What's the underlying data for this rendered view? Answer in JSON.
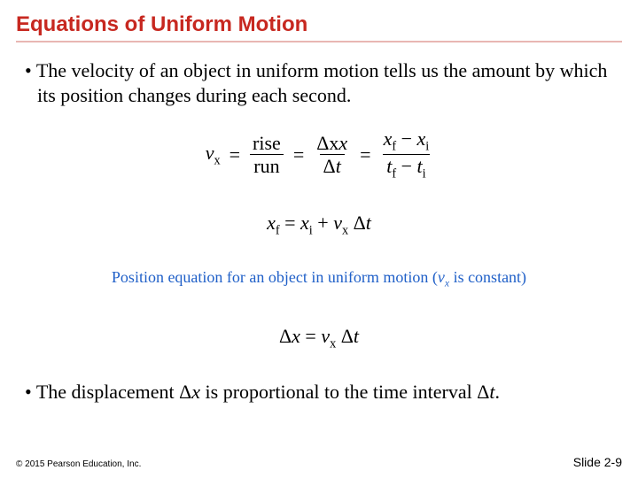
{
  "title": "Equations of Uniform Motion",
  "bullet1": "The velocity of an object in uniform motion tells us the amount by which its position changes during each second.",
  "caption_prefix": "Position equation for an object in uniform motion (",
  "caption_var": "v",
  "caption_varsub": "x",
  "caption_suffix": " is constant)",
  "bullet2_a": "The displacement ",
  "bullet2_dx": "Δx",
  "bullet2_b": " is proportional to the time interval ",
  "bullet2_dt": "Δt",
  "bullet2_c": ".",
  "copyright": "© 2015 Pearson Education, Inc.",
  "slidenum": "Slide 2-9",
  "eq": {
    "vx_label_v": "v",
    "vx_label_x": "x",
    "eq_sign": "=",
    "rise": "rise",
    "run": "run",
    "dx": "Δx",
    "dt": "Δt",
    "xf_minus_xi_num_a": "x",
    "sub_f": "f",
    "minus": " − ",
    "sub_i": "i",
    "tf_ti_t": "t",
    "eq2_xf": "x",
    "eq2_plus": " + ",
    "eq2_space": " "
  },
  "colors": {
    "title": "#c72820",
    "rule": "#e9b7b3",
    "caption": "#2060c8",
    "text": "#000000",
    "bg": "#ffffff"
  },
  "fonts": {
    "title_family": "Arial",
    "title_size_pt": 18,
    "body_family": "Times New Roman",
    "body_size_pt": 16,
    "caption_size_pt": 13,
    "footer_size_pt": 8
  }
}
